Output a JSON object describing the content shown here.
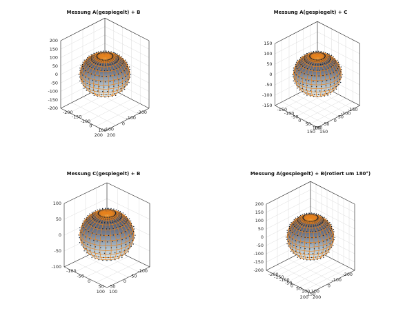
{
  "figure": {
    "colors": {
      "mesh": "#e6821e",
      "points": "#0d1a2a",
      "surface_top": "#3a4051",
      "surface_bottom": "#e2eef3",
      "box": "#222222",
      "grid": "#dcdcdc"
    }
  },
  "chart_data": [
    {
      "type": "3d-surface-with-scatter",
      "title": "Messung A(gespiegelt) + B",
      "xlim": [
        -200,
        200
      ],
      "ylim": [
        -200,
        200
      ],
      "zlim": [
        -200,
        200
      ],
      "xticks": [
        "-200",
        "-150",
        "-100",
        "0",
        "100",
        "200"
      ],
      "yticks": [
        "-200",
        "-100",
        "0",
        "100",
        "200"
      ],
      "zticks": [
        "200",
        "150",
        "100",
        "50",
        "0",
        "-50",
        "-100",
        "-150",
        "-200"
      ],
      "radii": {
        "x": 160,
        "y": 160,
        "z": 110
      },
      "grid": true
    },
    {
      "type": "3d-surface-with-scatter",
      "title": "Messung A(gespiegelt) + C",
      "xlim": [
        -150,
        150
      ],
      "ylim": [
        -150,
        150
      ],
      "zlim": [
        -150,
        150
      ],
      "xticks": [
        "-150",
        "-100",
        "-50",
        "0",
        "50",
        "100",
        "150"
      ],
      "yticks": [
        "-150",
        "-100",
        "-50",
        "0",
        "50",
        "100",
        "150"
      ],
      "zticks": [
        "150",
        "100",
        "50",
        "0",
        "-50",
        "-100",
        "-150"
      ],
      "radii": {
        "x": 120,
        "y": 120,
        "z": 90
      },
      "grid": true
    },
    {
      "type": "3d-surface-with-scatter",
      "title": "Messung C(gespiegelt) + B",
      "xlim": [
        -100,
        100
      ],
      "ylim": [
        -100,
        100
      ],
      "zlim": [
        -100,
        100
      ],
      "xticks": [
        "-100",
        "-50",
        "0",
        "50",
        "100"
      ],
      "yticks": [
        "-100",
        "-50",
        "0",
        "50",
        "100"
      ],
      "zticks": [
        "100",
        "50",
        "0",
        "-50",
        "-100"
      ],
      "radii": {
        "x": 90,
        "y": 90,
        "z": 70
      },
      "grid": true
    },
    {
      "type": "3d-surface-with-scatter",
      "title": "Messung A(gespiegelt) + B(rotiert um 180°)",
      "xlim": [
        -200,
        200
      ],
      "ylim": [
        -200,
        200
      ],
      "zlim": [
        -200,
        200
      ],
      "xticks": [
        "-200",
        "-150",
        "-100",
        "-50",
        "0",
        "50",
        "100",
        "150",
        "200"
      ],
      "yticks": [
        "-200",
        "-100",
        "0",
        "100",
        "200"
      ],
      "zticks": [
        "200",
        "150",
        "100",
        "50",
        "0",
        "-50",
        "-100",
        "-150",
        "-200"
      ],
      "radii": {
        "x": 150,
        "y": 150,
        "z": 120
      },
      "grid": true
    }
  ]
}
